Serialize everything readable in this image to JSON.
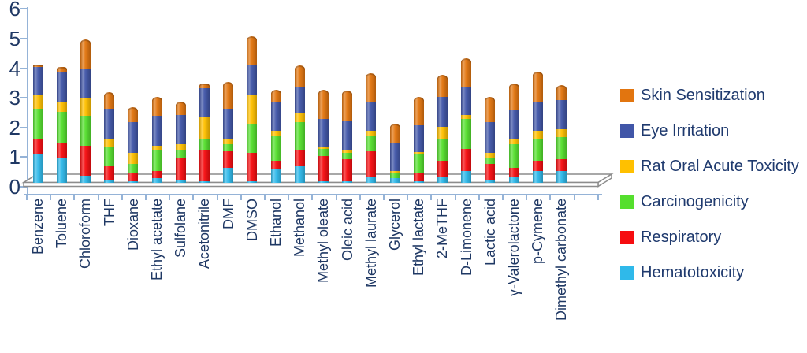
{
  "chart_data": {
    "type": "bar",
    "stacked": true,
    "style": "3d-cylinder",
    "title": "",
    "xlabel": "",
    "ylabel": "",
    "categories": [
      "Benzene",
      "Toluene",
      "Chloroform",
      "THF",
      "Dioxane",
      "Ethyl acetate",
      "Sulfolane",
      "Acetonitrile",
      "DMF",
      "DMSO",
      "Ethanol",
      "Methanol",
      "Methyl oleate",
      "Oleic acid",
      "Methyl laurate",
      "Glycerol",
      "Ethyl lactate",
      "2-MeTHF",
      "D-Limonene",
      "Lactic acid",
      "γ-Valerolactone",
      "p-Cymene",
      "Dimethyl carbonate"
    ],
    "series_bottom_to_top": [
      {
        "name": "Hematotoxicity",
        "color": "#2FB9EA",
        "values": [
          0.95,
          0.85,
          0.25,
          0.1,
          0.05,
          0.15,
          0.1,
          0.05,
          0.5,
          0.05,
          0.45,
          0.55,
          0.05,
          0.05,
          0.2,
          0.15,
          0.05,
          0.2,
          0.4,
          0.1,
          0.2,
          0.4,
          0.4
        ]
      },
      {
        "name": "Respiratory",
        "color": "#F60D10",
        "values": [
          0.55,
          0.5,
          1.0,
          0.45,
          0.3,
          0.25,
          0.75,
          1.05,
          0.55,
          0.95,
          0.3,
          0.55,
          0.85,
          0.75,
          0.85,
          0.0,
          0.3,
          0.55,
          0.75,
          0.55,
          0.3,
          0.35,
          0.4
        ]
      },
      {
        "name": "Carcinogenicity",
        "color": "#55DF2E",
        "values": [
          1.0,
          1.05,
          1.0,
          0.65,
          0.3,
          0.7,
          0.25,
          0.4,
          0.25,
          1.0,
          0.85,
          0.95,
          0.25,
          0.2,
          0.55,
          0.2,
          0.6,
          0.7,
          1.0,
          0.2,
          0.8,
          0.75,
          0.75
        ]
      },
      {
        "name": "Rat Oral Acute Toxicity",
        "color": "#FFC000",
        "values": [
          0.45,
          0.35,
          0.6,
          0.3,
          0.35,
          0.15,
          0.2,
          0.7,
          0.2,
          0.95,
          0.15,
          0.3,
          0.05,
          0.1,
          0.15,
          0.05,
          0.1,
          0.45,
          0.15,
          0.15,
          0.15,
          0.25,
          0.25
        ]
      },
      {
        "name": "Eye Irritation",
        "color": "#4156A8",
        "values": [
          0.95,
          1.0,
          1.0,
          1.0,
          1.05,
          1.0,
          1.0,
          1.0,
          1.0,
          1.0,
          0.95,
          0.9,
          0.95,
          1.0,
          1.0,
          0.95,
          0.9,
          1.0,
          0.95,
          1.05,
          1.0,
          1.0,
          1.0
        ]
      },
      {
        "name": "Skin Sensitization",
        "color": "#E2750F",
        "values": [
          0.1,
          0.15,
          1.0,
          0.55,
          0.5,
          0.65,
          0.45,
          0.15,
          0.9,
          1.0,
          0.45,
          0.7,
          1.0,
          1.0,
          0.95,
          0.65,
          0.95,
          0.75,
          0.95,
          0.85,
          0.9,
          1.0,
          0.5
        ]
      }
    ],
    "totals": [
      4.0,
      3.9,
      4.85,
      3.05,
      2.55,
      2.9,
      2.75,
      3.35,
      3.4,
      4.95,
      3.15,
      3.95,
      3.15,
      3.1,
      3.7,
      2.0,
      2.9,
      3.65,
      4.2,
      2.9,
      3.35,
      3.75,
      3.3
    ],
    "y_axis": {
      "min": 0,
      "max": 6,
      "tick_interval": 1,
      "tick_labels": [
        "0",
        "1",
        "2",
        "3",
        "4",
        "5",
        "6"
      ]
    },
    "legend": {
      "position": "right",
      "order_top_to_bottom": [
        "Skin Sensitization",
        "Eye Irritation",
        "Rat Oral Acute Toxicity",
        "Carcinogenicity",
        "Respiratory",
        "Hematotoxicity"
      ]
    },
    "grid": "off"
  },
  "colors": {
    "axis_line": "#95B3D7",
    "axis_text": "#1F3864",
    "legend_text": "#1F3A6E",
    "floor_stroke": "#8C8C8C",
    "background": "#FFFFFF"
  }
}
